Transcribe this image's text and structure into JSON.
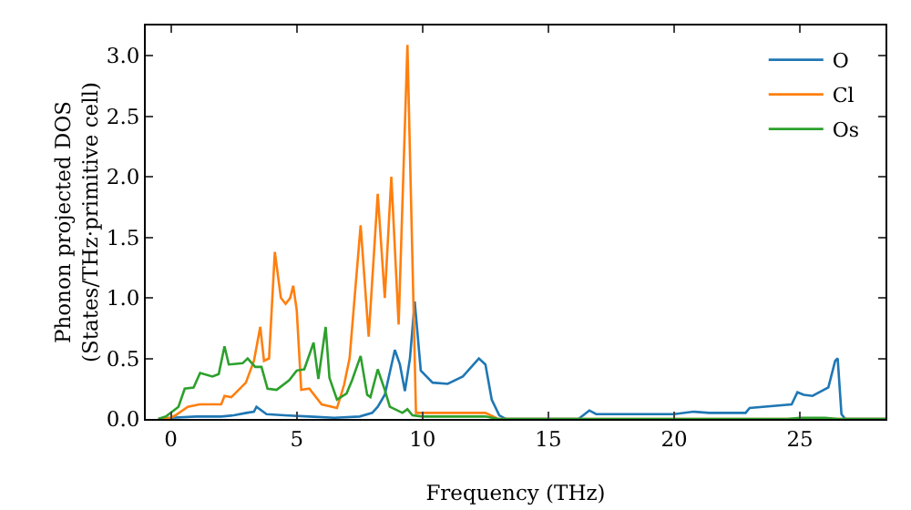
{
  "chart_data": {
    "type": "line",
    "xlabel": "Frequency (THz)",
    "ylabel": "Phonon projected DOS\n(States/THz·primitive cell)",
    "xlim": [
      -1,
      28.4
    ],
    "ylim": [
      0,
      3.25
    ],
    "xticks": [
      0,
      5,
      10,
      15,
      20,
      25
    ],
    "yticks": [
      {
        "value": 0,
        "label": "0.0"
      },
      0.5,
      {
        "value": 1,
        "label": "1.0"
      },
      1.5,
      {
        "value": 2,
        "label": "2.0"
      },
      2.5,
      {
        "value": 3,
        "label": "3.0"
      }
    ],
    "grid": false,
    "legend": "top right",
    "marker": "none",
    "line_style": "solid",
    "series": [
      {
        "name": "O",
        "color": "#1f77b4",
        "x": [
          -0.5,
          0,
          1,
          2,
          2.5,
          3,
          3.3,
          3.4,
          3.8,
          4.5,
          5.5,
          6.5,
          7.5,
          8,
          8.22,
          8.5,
          8.9,
          9.1,
          9.3,
          9.5,
          9.69,
          9.93,
          10.4,
          11,
          11.6,
          12.24,
          12.5,
          12.75,
          13.05,
          13.3,
          16.2,
          16.63,
          16.9,
          20,
          20.77,
          21.4,
          22.84,
          23,
          24.67,
          24.9,
          25.15,
          25.5,
          26.13,
          26.4,
          26.5,
          26.65,
          26.8,
          28.4
        ],
        "values": [
          0,
          0.01,
          0.02,
          0.02,
          0.03,
          0.05,
          0.06,
          0.1,
          0.04,
          0.03,
          0.02,
          0.01,
          0.02,
          0.05,
          0.1,
          0.2,
          0.57,
          0.45,
          0.23,
          0.5,
          0.97,
          0.4,
          0.3,
          0.29,
          0.35,
          0.5,
          0.45,
          0.16,
          0.03,
          0,
          0,
          0.07,
          0.04,
          0.04,
          0.06,
          0.05,
          0.05,
          0.09,
          0.12,
          0.22,
          0.2,
          0.19,
          0.26,
          0.48,
          0.5,
          0.04,
          0,
          0
        ]
      },
      {
        "name": "Cl",
        "color": "#ff7f0e",
        "x": [
          -0.5,
          0,
          0.18,
          0.67,
          1.14,
          2.0,
          2.13,
          2.4,
          2.98,
          3.3,
          3.55,
          3.7,
          3.9,
          4.13,
          4.37,
          4.56,
          4.74,
          4.86,
          5.0,
          5.18,
          5.5,
          5.99,
          6.6,
          6.88,
          7.1,
          7.54,
          7.86,
          8.22,
          8.5,
          8.76,
          9.05,
          9.4,
          9.74,
          10.5,
          12.5,
          13,
          28.4
        ],
        "values": [
          0,
          0.01,
          0.03,
          0.1,
          0.12,
          0.12,
          0.19,
          0.18,
          0.3,
          0.48,
          0.76,
          0.48,
          0.5,
          1.38,
          1.0,
          0.95,
          1.0,
          1.1,
          0.9,
          0.24,
          0.25,
          0.12,
          0.09,
          0.28,
          0.5,
          1.6,
          0.68,
          1.86,
          1.0,
          2.0,
          0.78,
          3.09,
          0.05,
          0.05,
          0.05,
          0,
          0
        ]
      },
      {
        "name": "Os",
        "color": "#2ca02c",
        "x": [
          -0.5,
          -0.2,
          0.3,
          0.55,
          0.9,
          1.16,
          1.65,
          1.9,
          2.13,
          2.3,
          2.85,
          3.05,
          3.35,
          3.6,
          3.84,
          4.2,
          4.7,
          5.0,
          5.3,
          5.67,
          5.86,
          6.15,
          6.3,
          6.6,
          6.98,
          7.2,
          7.54,
          7.8,
          7.93,
          8.22,
          8.5,
          8.7,
          9.0,
          9.2,
          9.4,
          9.6,
          10,
          12.5,
          13,
          24.5,
          25,
          26,
          26.5,
          28.4
        ],
        "values": [
          0,
          0.02,
          0.1,
          0.25,
          0.26,
          0.38,
          0.35,
          0.37,
          0.6,
          0.45,
          0.46,
          0.5,
          0.43,
          0.43,
          0.25,
          0.24,
          0.32,
          0.4,
          0.41,
          0.63,
          0.33,
          0.76,
          0.34,
          0.16,
          0.21,
          0.32,
          0.52,
          0.2,
          0.18,
          0.41,
          0.24,
          0.1,
          0.07,
          0.05,
          0.08,
          0.03,
          0.02,
          0.02,
          0,
          0,
          0.01,
          0.01,
          0,
          0
        ]
      }
    ]
  }
}
